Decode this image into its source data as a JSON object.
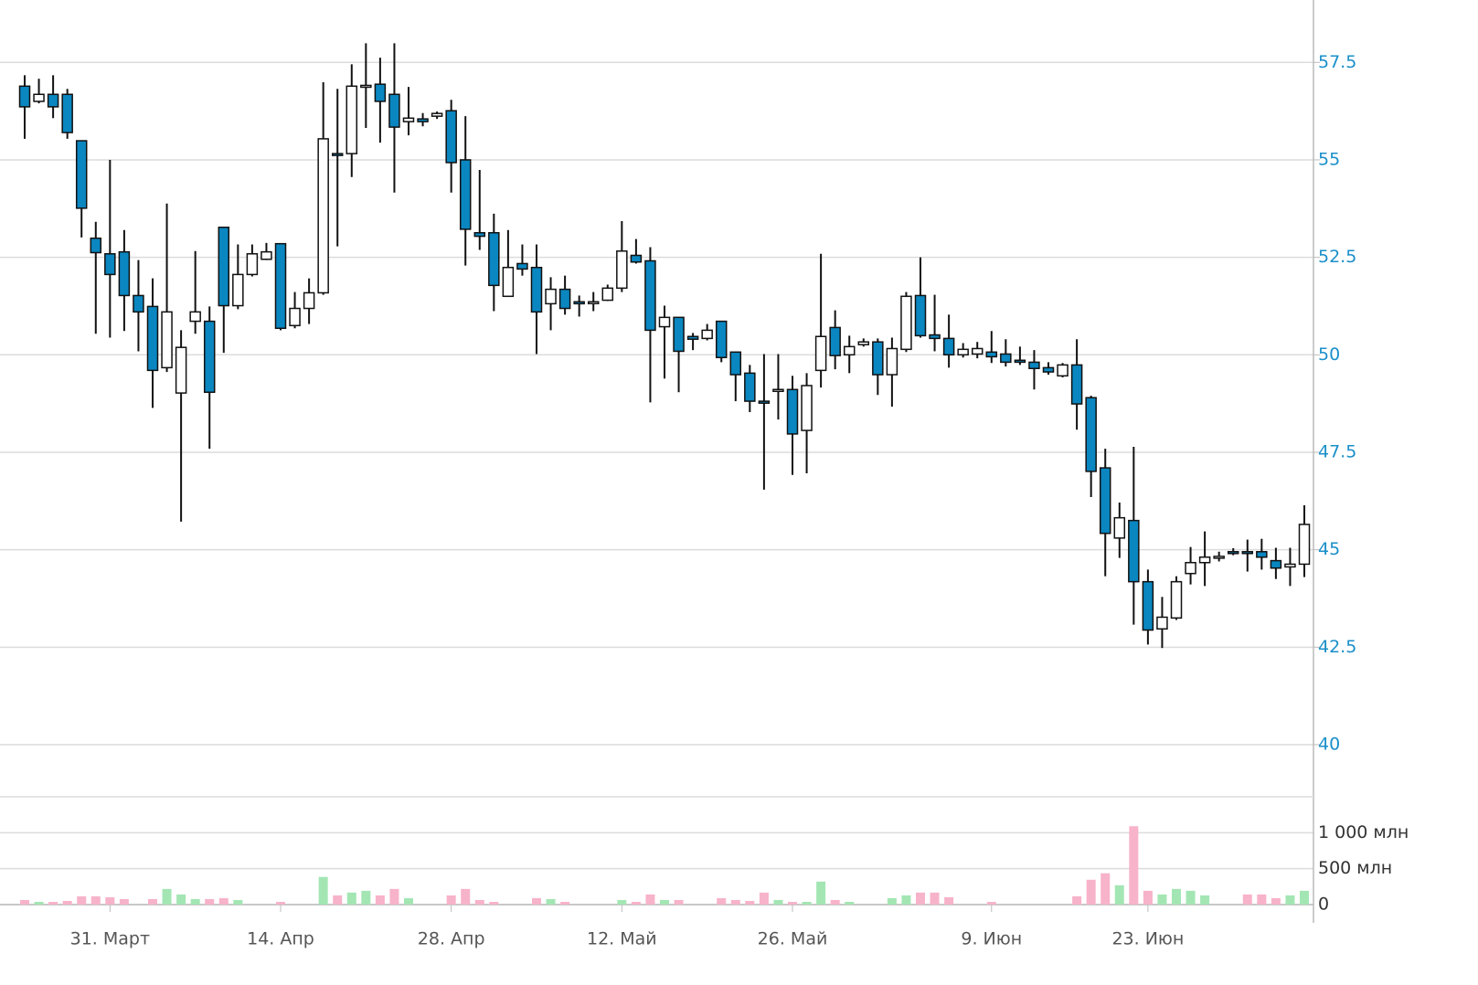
{
  "chart_data": {
    "type": "candlestick",
    "categories": [
      null,
      null,
      null,
      null,
      null,
      null,
      "31. Март",
      null,
      null,
      null,
      null,
      null,
      null,
      null,
      null,
      null,
      null,
      null,
      "14. Апр",
      null,
      null,
      null,
      null,
      null,
      null,
      null,
      null,
      null,
      null,
      null,
      "28. Апр",
      null,
      null,
      null,
      null,
      null,
      null,
      null,
      null,
      null,
      null,
      null,
      "12. Май",
      null,
      null,
      null,
      null,
      null,
      null,
      null,
      null,
      null,
      null,
      null,
      "26. Май",
      null,
      null,
      null,
      null,
      null,
      null,
      null,
      null,
      null,
      null,
      null,
      null,
      null,
      "9. Июн",
      null,
      null,
      null,
      null,
      null,
      null,
      null,
      null,
      null,
      null,
      "23. Июн",
      null,
      null,
      null,
      null,
      null,
      null,
      null,
      null,
      null,
      null,
      null
    ],
    "open": [
      56.89,
      56.5,
      56.68,
      56.68,
      55.49,
      52.99,
      52.59,
      52.64,
      51.52,
      51.24,
      49.67,
      49.02,
      50.86,
      50.86,
      53.27,
      51.26,
      52.06,
      52.45,
      52.85,
      50.75,
      51.19,
      51.59,
      55.16,
      55.16,
      56.89,
      56.94,
      56.68,
      55.98,
      56.05,
      56.12,
      56.26,
      55.0,
      53.13,
      53.13,
      51.5,
      52.34,
      52.24,
      51.31,
      51.68,
      51.36,
      51.33,
      51.4,
      51.71,
      52.55,
      52.41,
      50.72,
      50.96,
      50.47,
      50.42,
      50.86,
      50.07,
      49.53,
      48.81,
      49.07,
      49.11,
      48.06,
      49.6,
      50.7,
      50.0,
      50.26,
      50.33,
      49.49,
      50.14,
      51.52,
      50.51,
      50.42,
      50.0,
      50.02,
      50.07,
      50.02,
      49.86,
      49.81,
      49.67,
      49.46,
      49.74,
      48.9,
      47.1,
      45.3,
      45.75,
      44.18,
      42.97,
      43.25,
      44.39,
      44.67,
      44.79,
      44.95,
      44.95,
      44.95,
      44.72,
      44.56,
      44.63
    ],
    "high": [
      57.17,
      57.08,
      57.17,
      56.82,
      55.49,
      53.41,
      55.0,
      53.2,
      52.43,
      51.96,
      53.88,
      50.63,
      52.66,
      51.24,
      53.27,
      52.83,
      52.83,
      52.87,
      52.85,
      51.61,
      51.96,
      56.99,
      56.82,
      57.45,
      57.99,
      57.62,
      57.99,
      56.87,
      56.2,
      56.24,
      56.54,
      56.12,
      54.74,
      53.62,
      53.2,
      52.83,
      52.83,
      51.99,
      52.03,
      51.52,
      51.61,
      51.8,
      53.43,
      52.97,
      52.76,
      51.26,
      50.96,
      50.56,
      50.79,
      50.86,
      50.07,
      49.74,
      50.02,
      50.02,
      49.46,
      49.53,
      52.59,
      51.14,
      50.49,
      50.42,
      50.42,
      50.44,
      51.61,
      52.5,
      51.54,
      51.03,
      50.3,
      50.33,
      50.61,
      50.4,
      50.21,
      50.12,
      49.81,
      49.79,
      50.4,
      48.95,
      47.59,
      46.21,
      47.64,
      44.49,
      43.79,
      44.32,
      45.07,
      45.47,
      44.95,
      45.04,
      45.26,
      45.28,
      45.05,
      45.05,
      46.14
    ],
    "low": [
      55.54,
      56.45,
      56.07,
      55.54,
      53.01,
      50.54,
      50.44,
      50.61,
      50.09,
      48.64,
      49.56,
      45.72,
      50.54,
      47.59,
      50.05,
      51.17,
      52.01,
      52.43,
      50.63,
      50.68,
      50.79,
      51.54,
      52.78,
      54.56,
      55.82,
      55.44,
      54.16,
      55.63,
      55.86,
      56.05,
      54.16,
      52.29,
      52.69,
      51.12,
      51.5,
      52.03,
      50.02,
      50.63,
      51.03,
      50.98,
      51.12,
      51.38,
      51.61,
      52.34,
      48.78,
      49.39,
      49.04,
      50.12,
      50.37,
      49.81,
      48.81,
      48.53,
      46.54,
      48.34,
      46.92,
      46.96,
      49.16,
      49.63,
      49.53,
      50.21,
      48.97,
      48.67,
      50.07,
      50.44,
      50.09,
      49.67,
      49.93,
      49.91,
      49.79,
      49.7,
      49.74,
      49.11,
      49.49,
      49.42,
      48.08,
      46.35,
      44.32,
      44.79,
      43.08,
      42.57,
      42.48,
      43.2,
      44.11,
      44.07,
      44.7,
      44.86,
      44.44,
      44.49,
      44.25,
      44.07,
      44.3
    ],
    "close": [
      56.36,
      56.68,
      56.36,
      55.7,
      53.76,
      52.62,
      52.06,
      51.52,
      51.1,
      49.6,
      51.1,
      50.19,
      51.1,
      49.04,
      51.26,
      52.06,
      52.59,
      52.64,
      50.68,
      51.19,
      51.59,
      55.54,
      55.12,
      56.89,
      56.91,
      56.5,
      55.84,
      56.07,
      55.98,
      56.19,
      54.93,
      53.22,
      53.04,
      51.78,
      52.24,
      52.2,
      51.1,
      51.68,
      51.19,
      51.31,
      51.36,
      51.71,
      52.66,
      52.38,
      50.63,
      50.96,
      50.09,
      50.4,
      50.63,
      49.93,
      49.49,
      48.81,
      48.76,
      49.11,
      47.97,
      49.21,
      50.47,
      49.98,
      50.21,
      50.33,
      49.49,
      50.16,
      51.5,
      50.49,
      50.42,
      50.0,
      50.14,
      50.16,
      49.95,
      49.81,
      49.81,
      49.65,
      49.56,
      49.74,
      48.74,
      47.01,
      45.42,
      45.82,
      44.18,
      42.94,
      43.27,
      44.18,
      44.67,
      44.81,
      44.83,
      44.91,
      44.91,
      44.81,
      44.53,
      44.63,
      45.65
    ],
    "volume": [
      64,
      38,
      38,
      51,
      115,
      115,
      103,
      77,
      0,
      77,
      218,
      141,
      77,
      77,
      90,
      64,
      0,
      0,
      38,
      0,
      0,
      385,
      128,
      167,
      192,
      128,
      218,
      90,
      0,
      0,
      128,
      218,
      64,
      38,
      0,
      0,
      90,
      77,
      38,
      0,
      0,
      0,
      64,
      38,
      141,
      64,
      64,
      0,
      0,
      90,
      64,
      51,
      167,
      64,
      38,
      38,
      320,
      64,
      38,
      0,
      0,
      90,
      128,
      167,
      167,
      103,
      0,
      0,
      38,
      0,
      0,
      0,
      0,
      0,
      115,
      346,
      436,
      269,
      1090,
      192,
      141,
      218,
      192,
      128,
      0,
      0,
      141,
      141,
      90,
      128,
      192
    ],
    "ylim": [
      40,
      59.1
    ],
    "yticks": [
      40,
      42.5,
      45,
      47.5,
      50,
      52.5,
      55,
      57.5
    ],
    "y2lim": [
      0,
      1500
    ],
    "y2ticks": [
      0,
      {
        "value": 500,
        "label": "500 млн"
      },
      {
        "value": 1000,
        "label": "1 000 млн"
      }
    ],
    "up_color": "#ffffff",
    "down_color": "#0a86c0",
    "wick_color": "#111111",
    "up_volume_color": "#a3e6b4",
    "down_volume_color": "#f7b3ca",
    "grid": true
  }
}
